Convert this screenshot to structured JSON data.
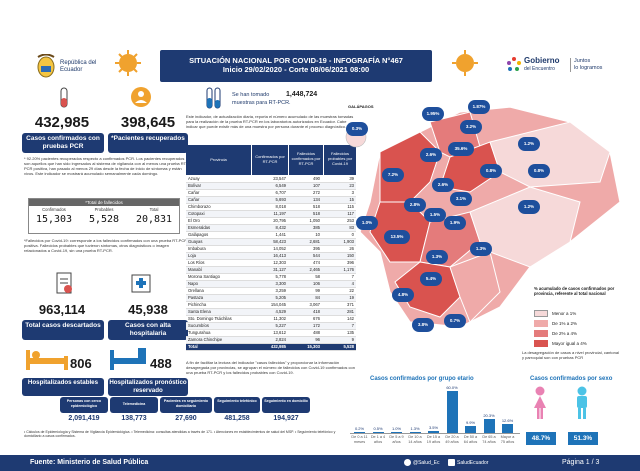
{
  "header": {
    "republica": "República del Ecuador",
    "title": "SITUACIÓN NACIONAL POR COVID-19 - INFOGRAFÍA N°467",
    "subtitle": "Inicio 29/02/2020 - Corte 08/06/2021 08:00",
    "gobierno": "Gobierno",
    "del_encuentro": "del Encuentro",
    "juntos": "Juntos\nlo logramos"
  },
  "left": {
    "casos_confirmados": "432,985",
    "casos_confirmados_label": "Casos confirmados con pruebas PCR",
    "recuperados": "398,645",
    "recuperados_label": "*Pacientes recuperados",
    "recuperados_note": "* 92.20% pacientes recuperados respecto a confirmados PCR. Los pacientes recuperados son aquellos que han sido ingresados al sistema de vigilancia con al menos una prueba RT-PCR positiva, han pasado al menos 29 días desde la fecha de inicio de síntomas y están vivos. Este indicador se mostrará acumulado semanalmente cada domingo.",
    "fallecidos_title": "*Total de fallecidos",
    "fallecidos_headers": [
      "Confirmados",
      "Probables",
      "Total"
    ],
    "fallecidos_values": [
      "15,303",
      "5,528",
      "20,831"
    ],
    "fallecidos_note": "*Fallecidos por Covid-19: corresponde a los fallecidos confirmados con una prueba RT-PCR positiva. Fallecidos probables que tuvieron síntomas, otros diagnósticos o imagen relacionados a Covid-19, sin una prueba RT-PCR.",
    "descartados": "963,114",
    "descartados_label": "Total casos descartados",
    "alta": "45,938",
    "alta_label": "Casos con alta hospitalaria",
    "estables": "806",
    "estables_label": "Hospitalizados estables",
    "reservado": "488",
    "reservado_label": "Hospitalizados pronóstico reservado"
  },
  "pruebas": {
    "text1": "Se han tomado",
    "value": "1,448,724",
    "text2": "muestras para RT-PCR.",
    "note": "Este indicador, de actualización diaria, reporta el número acumulado de las muestras tomadas para la realización de la prueba RT-PCR en los laboratorios autorizados en Ecuador. Cabe indicar que puede existir más de una muestra por persona durante el proceso diagnóstico."
  },
  "table": {
    "headers": [
      "Provincia",
      "Confirmados por RT-PCR",
      "Fallecidos confirmados por RT-PCR",
      "Fallecidos probables por Covid-19"
    ],
    "rows": [
      [
        "Azuay",
        "23,547",
        "490",
        "39"
      ],
      [
        "Bolívar",
        "6,549",
        "107",
        "23"
      ],
      [
        "Cañar",
        "6,707",
        "272",
        "3"
      ],
      [
        "Cañar",
        "5,693",
        "134",
        "15"
      ],
      [
        "Chimborazo",
        "8,018",
        "518",
        "115"
      ],
      [
        "Cotopaxi",
        "11,197",
        "518",
        "117"
      ],
      [
        "El Oro",
        "20,795",
        "1,050",
        "253"
      ],
      [
        "Esmeraldas",
        "8,432",
        "385",
        "83"
      ],
      [
        "Galápagos",
        "1,441",
        "10",
        "0"
      ],
      [
        "Guayas",
        "58,423",
        "2,681",
        "1,903"
      ],
      [
        "Imbabura",
        "14,052",
        "395",
        "26"
      ],
      [
        "Loja",
        "16,413",
        "544",
        "150"
      ],
      [
        "Los Ríos",
        "12,303",
        "474",
        "396"
      ],
      [
        "Manabí",
        "31,127",
        "2,465",
        "1,176"
      ],
      [
        "Morona Santiago",
        "5,778",
        "58",
        "7"
      ],
      [
        "Napo",
        "3,300",
        "106",
        "4"
      ],
      [
        "Orellana",
        "3,259",
        "99",
        "22"
      ],
      [
        "Pastaza",
        "5,205",
        "84",
        "19"
      ],
      [
        "Pichincha",
        "154,045",
        "3,067",
        "371"
      ],
      [
        "Santa Elena",
        "4,529",
        "418",
        "281"
      ],
      [
        "Sto. Domingo Tsáchilas",
        "11,302",
        "676",
        "142"
      ],
      [
        "Sucumbíos",
        "5,227",
        "172",
        "7"
      ],
      [
        "Tungurahua",
        "13,612",
        "488",
        "135"
      ],
      [
        "Zamora Chinchipe",
        "2,824",
        "96",
        "9"
      ],
      [
        "Total",
        "432,985",
        "15,303",
        "5,528"
      ]
    ],
    "footnote": "A fin de facilitar la lectura del indicador \"casos fallecidos\" y proporcionar la información desagregada por provincias, se agrupan el número de fallecidos con Covid-19 confirmados con una prueba RT-PCR y los fallecidos probables con Covid-19."
  },
  "stats": [
    {
      "value": "2,091,419",
      "label": "Personas con cerco epidemiológico"
    },
    {
      "value": "138,773",
      "label": "Telemedicina"
    },
    {
      "value": "27,690",
      "label": "Pacientes en seguimiento domiciliario"
    },
    {
      "value": "481,258",
      "label": "Seguimiento telefónico"
    },
    {
      "value": "194,927",
      "label": "Seguimiento en domicilio"
    }
  ],
  "notes": "• Cálculos de Epidemiología y Sistema de Vigilancia Epidemiológica. • Telemedicina: consultas atendidas a través de 171. • Atenciones en establecimientos de salud del MSP. • Seguimiento telefónico y domiciliario a casos confirmados.",
  "map": {
    "labels": [
      {
        "name": "GALÁPAGOS",
        "pct": "0.3%"
      },
      {
        "name": "ESMERALDAS",
        "pct": "1.95%"
      },
      {
        "name": "CARCHI",
        "pct": "1.87%"
      },
      {
        "name": "IMBABURA",
        "pct": "3.2%"
      },
      {
        "name": "PICHINCHA",
        "pct": "35.6%"
      },
      {
        "name": "SUCUMBÍOS",
        "pct": "1.2%"
      },
      {
        "name": "NAPO",
        "pct": "0.8%"
      },
      {
        "name": "ORELLANA",
        "pct": "0.8%"
      },
      {
        "name": "MANABÍ",
        "pct": "7.2%"
      },
      {
        "name": "STO DGO",
        "pct": "2.6%"
      },
      {
        "name": "COTOPAXI",
        "pct": "2.6%"
      },
      {
        "name": "LOS RÍOS",
        "pct": "2.8%"
      },
      {
        "name": "TUNGURAHUA",
        "pct": "3.1%"
      },
      {
        "name": "PASTAZA",
        "pct": "1.2%"
      },
      {
        "name": "BOLÍVAR",
        "pct": "1.5%"
      },
      {
        "name": "CHIMBORAZO",
        "pct": "1.9%"
      },
      {
        "name": "SANTA ELENA",
        "pct": "1.0%"
      },
      {
        "name": "GUAYAS",
        "pct": "13.5%"
      },
      {
        "name": "CAÑAR",
        "pct": "1.3%"
      },
      {
        "name": "MORONA SANTIAGO",
        "pct": "1.3%"
      },
      {
        "name": "AZUAY",
        "pct": "5.4%"
      },
      {
        "name": "EL ORO",
        "pct": "4.8%"
      },
      {
        "name": "LOJA",
        "pct": "3.8%"
      },
      {
        "name": "ZAMORA",
        "pct": "0.7%"
      }
    ],
    "legend_title": "% acumulado de casos confirmados por provincia, referente al total nacional",
    "legend": [
      "Menor a 1%",
      "De 1% a 2%",
      "De 2% a 4%",
      "Mayor igual a 4%"
    ],
    "legend_colors": [
      "#f6d9d9",
      "#efaaa9",
      "#e47b7b",
      "#d9534f"
    ],
    "note": "La desagregación de casos a nivel provincial, cantonal y parroquial son con pruebas PCR"
  },
  "chart_data": {
    "type": "bar",
    "title": "Casos confirmados por grupo etario",
    "categories": [
      "De 0 a 11 meses",
      "De 1 a 4 años",
      "De 5 a 9 años",
      "De 10 a 14 años",
      "De 15 a 19 años",
      "De 20 a 49 años",
      "De 50 a 64 años",
      "De 65 a 74 años",
      "Mayor a 75 años"
    ],
    "values": [
      0.2,
      0.5,
      1.0,
      1.3,
      3.5,
      60.0,
      9.9,
      20.3,
      12.6
    ],
    "value_labels": [
      "0.2%",
      "0.5%",
      "1.0%",
      "1.3%",
      "3.5%",
      "60.0%",
      "9.9%",
      "20.3%",
      "12.6%"
    ],
    "color": "#1e73b8"
  },
  "sex": {
    "title": "Casos confirmados por sexo",
    "female": "48.7%",
    "male": "51.3%",
    "female_color": "#e982b3",
    "male_color": "#4cc3e6"
  },
  "footer": {
    "source": "Fuente: Ministerio de Salud Pública",
    "social1": "@Salud_Ec",
    "social2": "SaludEcuador",
    "page": "Página 1 / 3"
  }
}
